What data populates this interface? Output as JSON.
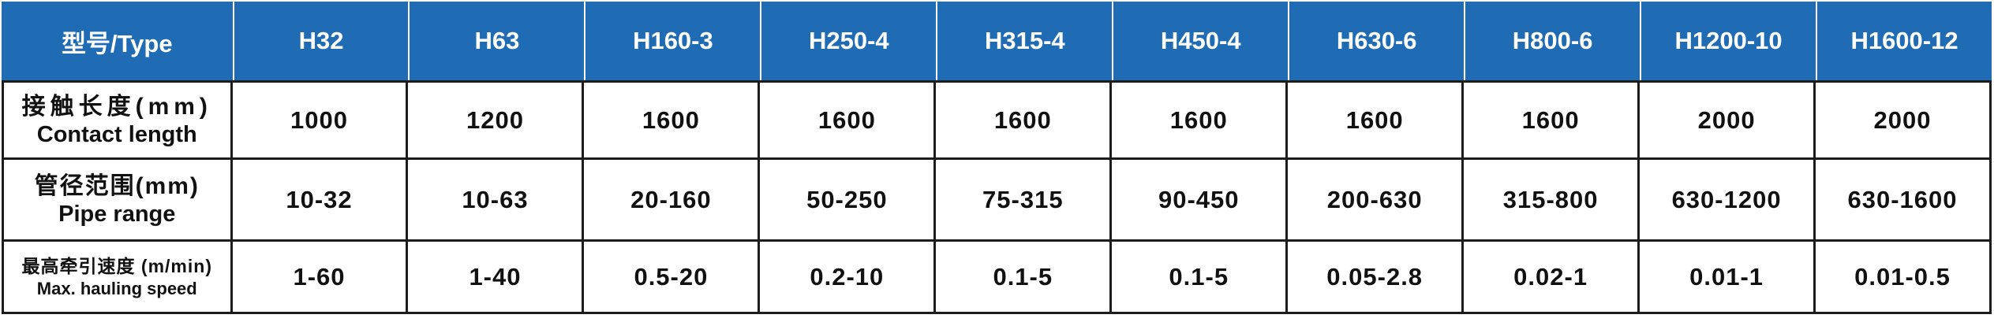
{
  "table": {
    "header": {
      "corner_label": "型号/Type",
      "types": [
        "H32",
        "H63",
        "H160-3",
        "H250-4",
        "H315-4",
        "H450-4",
        "H630-6",
        "H800-6",
        "H1200-10",
        "H1600-12"
      ]
    },
    "rows": [
      {
        "label_zh": "接触长度(mm)",
        "label_en": "Contact length",
        "values": [
          "1000",
          "1200",
          "1600",
          "1600",
          "1600",
          "1600",
          "1600",
          "1600",
          "2000",
          "2000"
        ]
      },
      {
        "label_zh": "管径范围(mm)",
        "label_en": "Pipe range",
        "values": [
          "10-32",
          "10-63",
          "20-160",
          "50-250",
          "75-315",
          "90-450",
          "200-630",
          "315-800",
          "630-1200",
          "630-1600"
        ]
      },
      {
        "label_zh": "最高牵引速度 (m/min)",
        "label_en": "Max. hauling speed",
        "values": [
          "1-60",
          "1-40",
          "0.5-20",
          "0.2-10",
          "0.1-5",
          "0.1-5",
          "0.05-2.8",
          "0.02-1",
          "0.01-1",
          "0.01-0.5"
        ]
      }
    ],
    "colors": {
      "header_bg": "#1f6cb4",
      "header_text": "#ffffff",
      "body_bg": "#ffffff",
      "body_text": "#111111",
      "border": "#1c1c1c",
      "header_divider": "#ffffff"
    }
  }
}
